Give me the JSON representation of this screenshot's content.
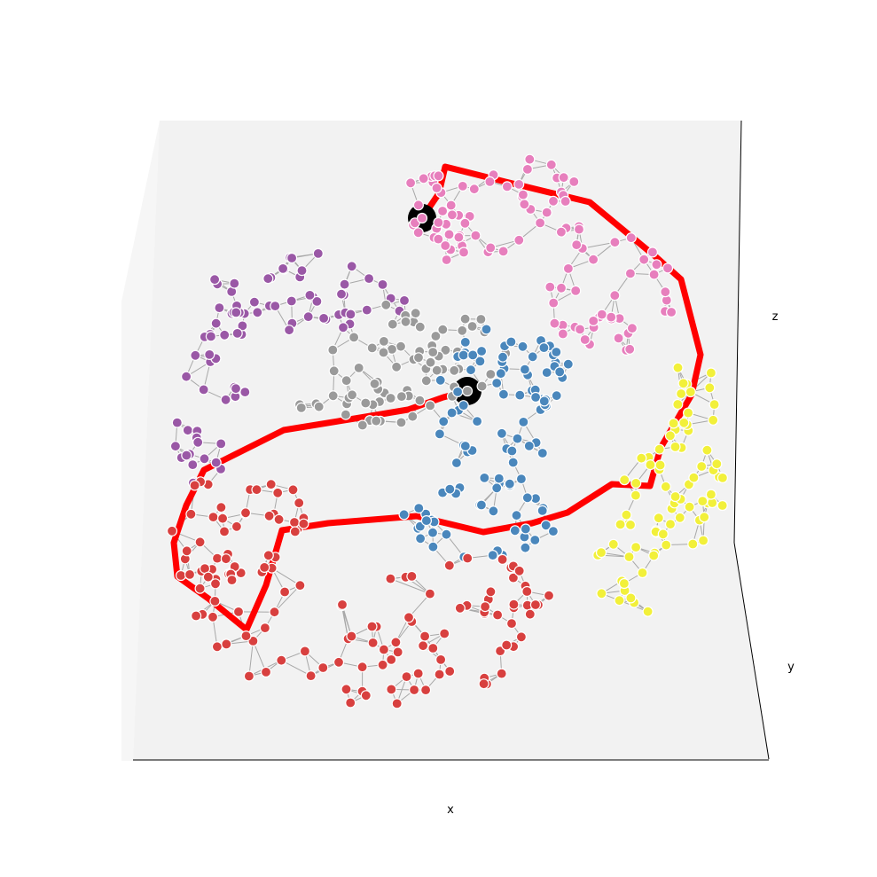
{
  "axes": {
    "x_label": "x",
    "y_label": "y",
    "z_label": "z",
    "pane_color": "#f2f2f2",
    "pane_left_color": "#f6f6f6",
    "pane_floor_color": "#f4f4f4"
  },
  "graph": {
    "edge_color": "#a8a8a8",
    "node_outline_color": "#ffffff",
    "path_color": "#ff0000",
    "endpoint_color": "#000000",
    "clusters": [
      {
        "name": "pink",
        "color": "#e77fbd"
      },
      {
        "name": "purple",
        "color": "#9a58a6"
      },
      {
        "name": "gray",
        "color": "#9a9a9a"
      },
      {
        "name": "blue",
        "color": "#4a87bc"
      },
      {
        "name": "red",
        "color": "#d8403f"
      },
      {
        "name": "yellow",
        "color": "#f2f03a"
      }
    ]
  }
}
